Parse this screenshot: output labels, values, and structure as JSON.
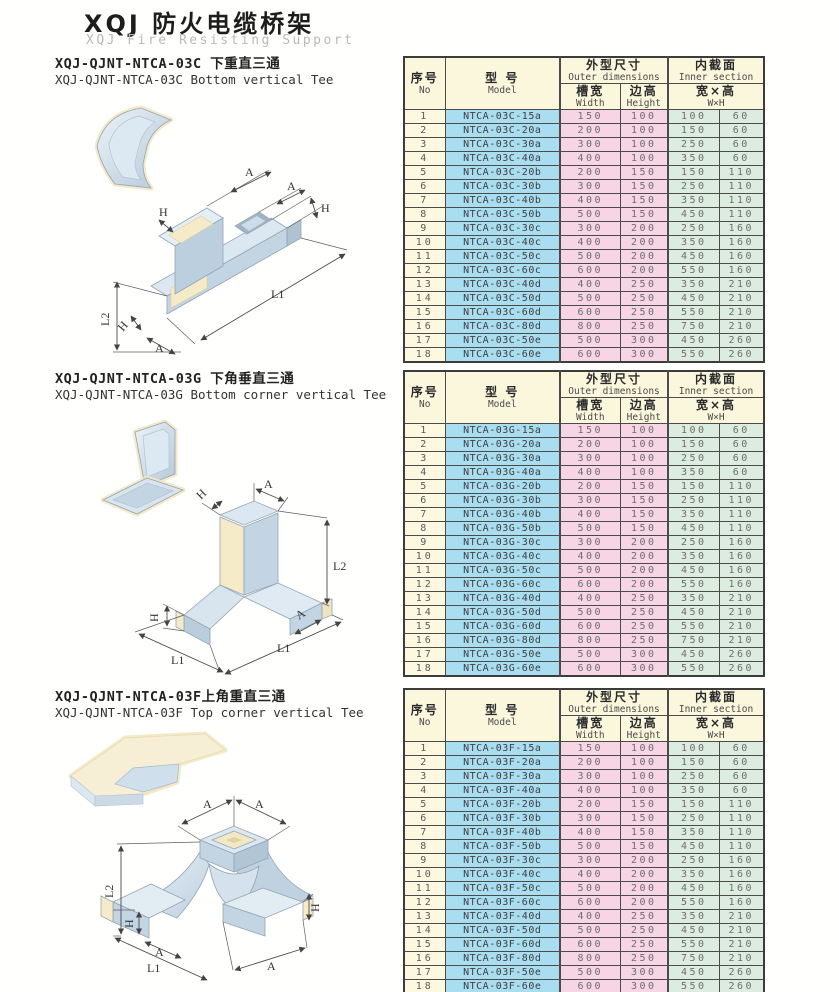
{
  "page": {
    "title_zh": "XQJ 防火电缆桥架",
    "title_en": "XQJ Fire Resisting Support"
  },
  "table_headers": {
    "no_zh": "序号",
    "no_en": "No",
    "model_zh": "型 号",
    "model_en": "Model",
    "outer_zh": "外型尺寸",
    "outer_en": "Outer dimensions",
    "width_zh": "槽宽",
    "width_en": "Width",
    "height_zh": "边高",
    "height_en": "Height",
    "inner_zh": "内截面",
    "inner_en": "Inner section",
    "wh_zh": "宽×高",
    "wh_en": "W×H"
  },
  "colors": {
    "header_bg": "#fbf7dd",
    "no_bg": "#fcf9e0",
    "model_bg": "#a9ddf0",
    "outer_bg": "#f7d5e5",
    "inner_bg": "#dcecdf",
    "border": "#3c3c3c"
  },
  "sections": [
    {
      "heading_zh": "XQJ-QJNT-NTCA-03C 下重直三通",
      "heading_en": "XQJ-QJNT-NTCA-03C Bottom vertical Tee",
      "labels": {
        "a_top1": "A",
        "a_top2": "A",
        "h_right": "H",
        "h_left": "H",
        "l1": "L1",
        "l2": "L2",
        "h_bottom": "H",
        "a_bottom": "A"
      },
      "rows": [
        [
          1,
          "NTCA-03C-15a",
          150,
          100,
          100,
          60
        ],
        [
          2,
          "NTCA-03C-20a",
          200,
          100,
          150,
          60
        ],
        [
          3,
          "NTCA-03C-30a",
          300,
          100,
          250,
          60
        ],
        [
          4,
          "NTCA-03C-40a",
          400,
          100,
          350,
          60
        ],
        [
          5,
          "NTCA-03C-20b",
          200,
          150,
          150,
          110
        ],
        [
          6,
          "NTCA-03C-30b",
          300,
          150,
          250,
          110
        ],
        [
          7,
          "NTCA-03C-40b",
          400,
          150,
          350,
          110
        ],
        [
          8,
          "NTCA-03C-50b",
          500,
          150,
          450,
          110
        ],
        [
          9,
          "NTCA-03C-30c",
          300,
          200,
          250,
          160
        ],
        [
          10,
          "NTCA-03C-40c",
          400,
          200,
          350,
          160
        ],
        [
          11,
          "NTCA-03C-50c",
          500,
          200,
          450,
          160
        ],
        [
          12,
          "NTCA-03C-60c",
          600,
          200,
          550,
          160
        ],
        [
          13,
          "NTCA-03C-40d",
          400,
          250,
          350,
          210
        ],
        [
          14,
          "NTCA-03C-50d",
          500,
          250,
          450,
          210
        ],
        [
          15,
          "NTCA-03C-60d",
          600,
          250,
          550,
          210
        ],
        [
          16,
          "NTCA-03C-80d",
          800,
          250,
          750,
          210
        ],
        [
          17,
          "NTCA-03C-50e",
          500,
          300,
          450,
          260
        ],
        [
          18,
          "NTCA-03C-60e",
          600,
          300,
          550,
          260
        ]
      ]
    },
    {
      "heading_zh": "XQJ-QJNT-NTCA-03G 下角垂直三通",
      "heading_en": "XQJ-QJNT-NTCA-03G Bottom corner vertical Tee",
      "labels": {
        "h_top": "H",
        "a_top": "A",
        "l2": "L2",
        "h_left": "H",
        "a_right": "A",
        "l1_left": "L1",
        "l1_right": "L1"
      },
      "rows": [
        [
          1,
          "NTCA-03G-15a",
          150,
          100,
          100,
          60
        ],
        [
          2,
          "NTCA-03G-20a",
          200,
          100,
          150,
          60
        ],
        [
          3,
          "NTCA-03G-30a",
          300,
          100,
          250,
          60
        ],
        [
          4,
          "NTCA-03G-40a",
          400,
          100,
          350,
          60
        ],
        [
          5,
          "NTCA-03G-20b",
          200,
          150,
          150,
          110
        ],
        [
          6,
          "NTCA-03G-30b",
          300,
          150,
          250,
          110
        ],
        [
          7,
          "NTCA-03G-40b",
          400,
          150,
          350,
          110
        ],
        [
          8,
          "NTCA-03G-50b",
          500,
          150,
          450,
          110
        ],
        [
          9,
          "NTCA-03G-30c",
          300,
          200,
          250,
          160
        ],
        [
          10,
          "NTCA-03G-40c",
          400,
          200,
          350,
          160
        ],
        [
          11,
          "NTCA-03G-50c",
          500,
          200,
          450,
          160
        ],
        [
          12,
          "NTCA-03G-60c",
          600,
          200,
          550,
          160
        ],
        [
          13,
          "NTCA-03G-40d",
          400,
          250,
          350,
          210
        ],
        [
          14,
          "NTCA-03G-50d",
          500,
          250,
          450,
          210
        ],
        [
          15,
          "NTCA-03G-60d",
          600,
          250,
          550,
          210
        ],
        [
          16,
          "NTCA-03G-80d",
          800,
          250,
          750,
          210
        ],
        [
          17,
          "NTCA-03G-50e",
          500,
          300,
          450,
          260
        ],
        [
          18,
          "NTCA-03G-60e",
          600,
          300,
          550,
          260
        ]
      ]
    },
    {
      "heading_zh": "XQJ-QJNT-NTCA-03F上角重直三通",
      "heading_en": "XQJ-QJNT-NTCA-03F Top corner vertical Tee",
      "labels": {
        "a_top1": "A",
        "a_top2": "A",
        "l2": "L2",
        "h_left": "H",
        "a_left": "A",
        "l1": "L1",
        "h_right": "H",
        "a_right": "A"
      },
      "rows": [
        [
          1,
          "NTCA-03F-15a",
          150,
          100,
          100,
          60
        ],
        [
          2,
          "NTCA-03F-20a",
          200,
          100,
          150,
          60
        ],
        [
          3,
          "NTCA-03F-30a",
          300,
          100,
          250,
          60
        ],
        [
          4,
          "NTCA-03F-40a",
          400,
          100,
          350,
          60
        ],
        [
          5,
          "NTCA-03F-20b",
          200,
          150,
          150,
          110
        ],
        [
          6,
          "NTCA-03F-30b",
          300,
          150,
          250,
          110
        ],
        [
          7,
          "NTCA-03F-40b",
          400,
          150,
          350,
          110
        ],
        [
          8,
          "NTCA-03F-50b",
          500,
          150,
          450,
          110
        ],
        [
          9,
          "NTCA-03F-30c",
          300,
          200,
          250,
          160
        ],
        [
          10,
          "NTCA-03F-40c",
          400,
          200,
          350,
          160
        ],
        [
          11,
          "NTCA-03F-50c",
          500,
          200,
          450,
          160
        ],
        [
          12,
          "NTCA-03F-60c",
          600,
          200,
          550,
          160
        ],
        [
          13,
          "NTCA-03F-40d",
          400,
          250,
          350,
          210
        ],
        [
          14,
          "NTCA-03F-50d",
          500,
          250,
          450,
          210
        ],
        [
          15,
          "NTCA-03F-60d",
          600,
          250,
          550,
          210
        ],
        [
          16,
          "NTCA-03F-80d",
          800,
          250,
          750,
          210
        ],
        [
          17,
          "NTCA-03F-50e",
          500,
          300,
          450,
          260
        ],
        [
          18,
          "NTCA-03F-60e",
          600,
          300,
          550,
          260
        ]
      ]
    }
  ]
}
